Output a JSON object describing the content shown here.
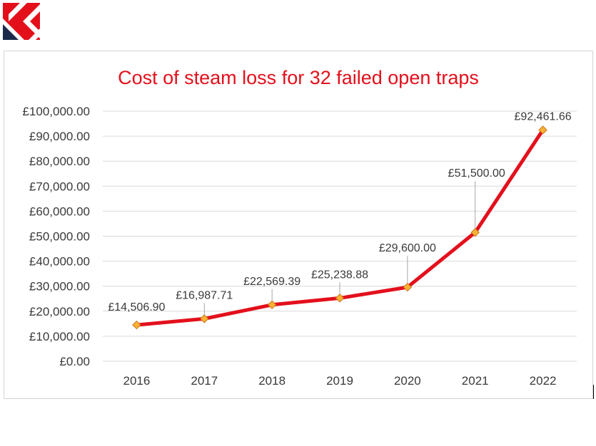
{
  "colors": {
    "title": "#e3101c",
    "line": "#e3101c",
    "marker_fill": "#f9b233",
    "marker_stroke": "#c8751a",
    "text": "#3a3a3a",
    "grid": "#d9d9d9",
    "leader": "#a6a6a6",
    "logo_red": "#e3101c",
    "logo_navy": "#1b2a4a"
  },
  "logo": {
    "icon": "diagonal-flag-icon"
  },
  "chart_data": {
    "type": "line",
    "title": "Cost of steam loss for 32 failed open traps",
    "xlabel": "",
    "ylabel": "",
    "categories": [
      "2016",
      "2017",
      "2018",
      "2019",
      "2020",
      "2021",
      "2022"
    ],
    "series": [
      {
        "values": [
          14506.9,
          16987.71,
          22569.39,
          25238.88,
          29600.0,
          51500.0,
          92461.66
        ],
        "labels": [
          "£14,506.90",
          "£16,987.71",
          "£22,569.39",
          "£25,238.88",
          "£29,600.00",
          "£51,500.00",
          "£92,461.66"
        ]
      }
    ],
    "ylim": [
      0,
      100000
    ],
    "yticks": [
      0,
      10000,
      20000,
      30000,
      40000,
      50000,
      60000,
      70000,
      80000,
      90000,
      100000
    ],
    "ytick_labels": [
      "£0.00",
      "£10,000.00",
      "£20,000.00",
      "£30,000.00",
      "£40,000.00",
      "£50,000.00",
      "£60,000.00",
      "£70,000.00",
      "£80,000.00",
      "£90,000.00",
      "£100,000.00"
    ],
    "grid": true,
    "legend": "none",
    "marker": "diamond"
  }
}
